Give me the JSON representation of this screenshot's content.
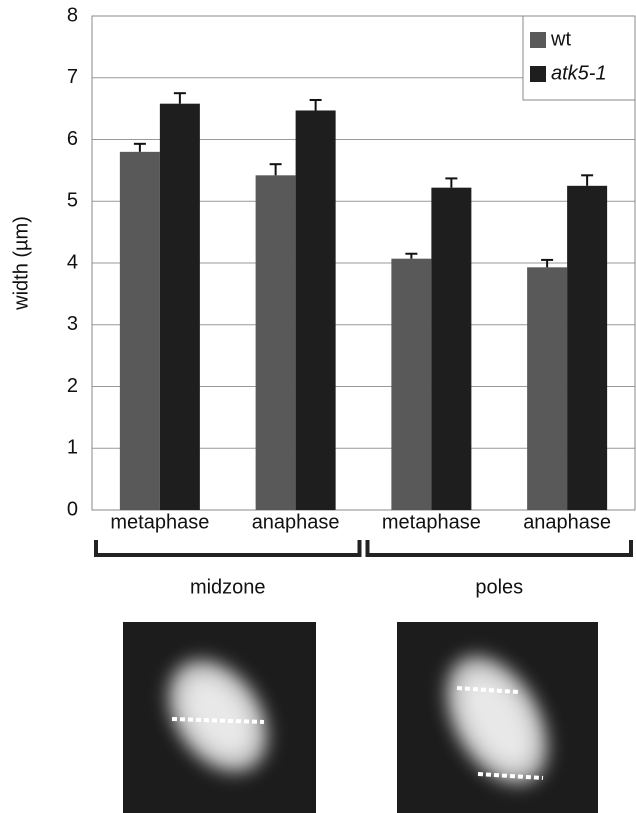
{
  "chart_data": {
    "type": "bar",
    "y_label": "width (µm)",
    "categories": [
      "metaphase",
      "anaphase",
      "metaphase",
      "anaphase"
    ],
    "groups": [
      "midzone",
      "poles"
    ],
    "series": [
      {
        "name": "wt",
        "color": "#595959",
        "values": [
          5.8,
          5.42,
          4.07,
          3.93
        ],
        "errors": [
          0.13,
          0.18,
          0.08,
          0.12
        ]
      },
      {
        "name": "atk5-1",
        "color": "#1e1e1e",
        "values": [
          6.58,
          6.47,
          5.22,
          5.25
        ],
        "errors": [
          0.17,
          0.17,
          0.15,
          0.17
        ]
      }
    ],
    "ylim": [
      0,
      8
    ],
    "yticks": [
      0,
      1,
      2,
      3,
      4,
      5,
      6,
      7,
      8
    ],
    "grid": true
  }
}
